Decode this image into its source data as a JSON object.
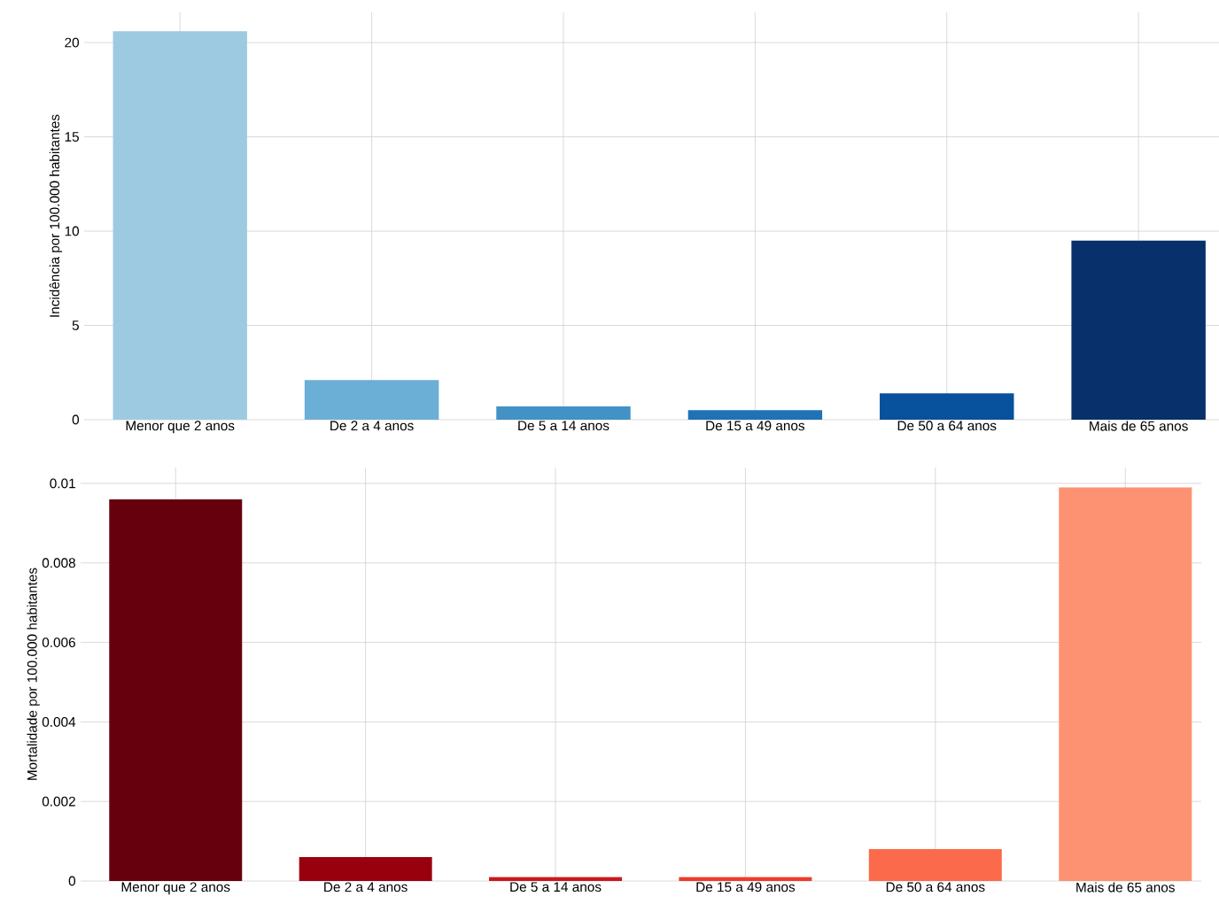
{
  "chart_data": [
    {
      "type": "bar",
      "ylabel": "Incidência por 100.000 habitantes",
      "categories": [
        "Menor que 2 anos",
        "De 2 a 4 anos",
        "De 5 a 14 anos",
        "De 15 a 49 anos",
        "De 50 a 64 anos",
        "Mais de 65 anos"
      ],
      "values": [
        20.6,
        2.1,
        0.7,
        0.5,
        1.4,
        9.5
      ],
      "colors": [
        "#9ecae1",
        "#6baed6",
        "#4292c6",
        "#2171b5",
        "#08519c",
        "#08306b"
      ],
      "ylim": [
        0,
        21.6
      ],
      "yticks": [
        0,
        5,
        10,
        15,
        20
      ],
      "grid": true
    },
    {
      "type": "bar",
      "ylabel": "Mortalidade por 100.000 habitantes",
      "categories": [
        "Menor que 2 anos",
        "De 2 a 4 anos",
        "De 5 a 14 anos",
        "De 15 a 49 anos",
        "De 50 a 64 anos",
        "Mais de 65 anos"
      ],
      "values": [
        0.0096,
        0.0006,
        0.0001,
        0.0001,
        0.0008,
        0.0099
      ],
      "colors": [
        "#67000d",
        "#99000d",
        "#cb181d",
        "#ef3b2c",
        "#fb6a4a",
        "#fc9272"
      ],
      "ylim": [
        0,
        0.0104
      ],
      "yticks": [
        0,
        0.002,
        0.004,
        0.006,
        0.008,
        0.01
      ],
      "grid": true
    }
  ]
}
